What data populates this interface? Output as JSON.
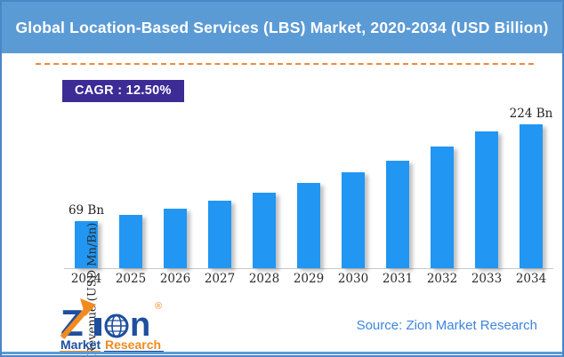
{
  "title_bar": {
    "title": "Global Location-Based Services (LBS) Market, 2020-2034 (USD Billion)"
  },
  "badge": {
    "label": "CAGR : 12.50%"
  },
  "footer": {
    "source_text": "Source: Zion Market Research",
    "logo": {
      "name_z": "Z",
      "name_i": "i",
      "name_n": "n",
      "reg": "®",
      "sub_left": "Market",
      "sub_right": "Research"
    }
  },
  "colors": {
    "frame_border": "#4a86c8",
    "title_bar": "#5b9bd5",
    "badge_bg": "#3d2b96",
    "bar": "#2196f3",
    "dash": "#ed8a3c",
    "source": "#3d85dd",
    "logo_blue": "#1d4f9e",
    "logo_orange": "#f28a1e"
  },
  "chart_data": {
    "type": "bar",
    "title": "Global Location-Based Services (LBS) Market, 2020-2034 (USD Billion)",
    "categories": [
      "2024",
      "2025",
      "2026",
      "2027",
      "2028",
      "2029",
      "2030",
      "2031",
      "2032",
      "2033",
      "2034"
    ],
    "values": [
      69,
      77.6,
      87.3,
      98.2,
      110.5,
      124.3,
      139.9,
      157.3,
      177.0,
      199.1,
      224
    ],
    "bar_labels": [
      "69 Bn",
      "",
      "",
      "",
      "",
      "",
      "",
      "",
      "",
      "",
      "224 Bn"
    ],
    "unit": "USD Billion",
    "cagr": "12.50%",
    "xlabel": "",
    "ylabel": "Revenue (USD Mn/Bn)",
    "ylim": [
      0,
      236
    ],
    "grid": false,
    "legend": "none",
    "bar_color": "#2196f3"
  }
}
